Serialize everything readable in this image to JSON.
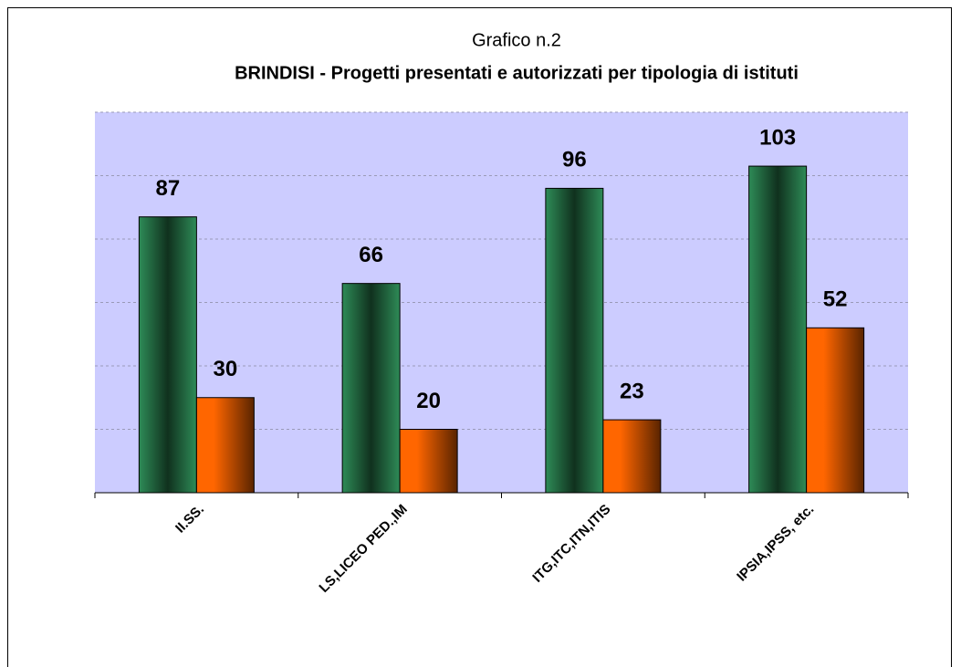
{
  "chart_data": {
    "type": "bar",
    "title": "Grafico n.2",
    "subtitle": "BRINDISI - Progetti presentati e autorizzati  per tipologia di istituti",
    "categories": [
      "II.SS.",
      "LS,LICEO PED.,IM",
      "ITG,ITC,ITN,ITIS",
      "IPSIA,IPSS, etc."
    ],
    "series": [
      {
        "color": "#2e8b57",
        "values": [
          87,
          66,
          96,
          103
        ]
      },
      {
        "color": "#ff6600",
        "values": [
          30,
          20,
          23,
          52
        ]
      }
    ],
    "ylim": [
      0,
      120
    ],
    "yticks": [
      0,
      20,
      40,
      60,
      80,
      100,
      120
    ],
    "grid": true,
    "plot_background": "#ccccff"
  }
}
